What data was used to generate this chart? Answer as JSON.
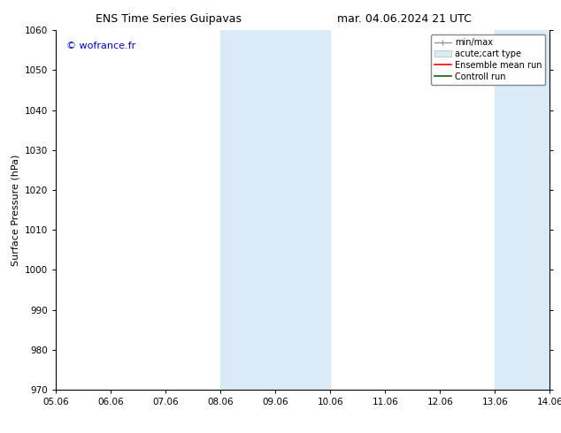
{
  "title_left": "ENS Time Series Guipavas",
  "title_right": "mar. 04.06.2024 21 UTC",
  "ylabel": "Surface Pressure (hPa)",
  "ylim": [
    970,
    1060
  ],
  "yticks": [
    970,
    980,
    990,
    1000,
    1010,
    1020,
    1030,
    1040,
    1050,
    1060
  ],
  "xtick_labels": [
    "05.06",
    "06.06",
    "07.06",
    "08.06",
    "09.06",
    "10.06",
    "11.06",
    "12.06",
    "13.06",
    "14.06"
  ],
  "watermark": "© wofrance.fr",
  "watermark_color": "#0000cc",
  "bg_color": "#ffffff",
  "plot_bg_color": "#ffffff",
  "shaded_regions": [
    {
      "xstart": 3,
      "xend": 5,
      "color": "#daeaf7"
    },
    {
      "xstart": 8,
      "xend": 9,
      "color": "#daeaf7"
    }
  ],
  "legend_entries": [
    {
      "label": "min/max",
      "color": "#aaaaaa",
      "lw": 1.0
    },
    {
      "label": "acute;cart type",
      "color": "#daeaf7",
      "lw": 6
    },
    {
      "label": "Ensemble mean run",
      "color": "#ff0000",
      "lw": 1.5
    },
    {
      "label": "Controll run",
      "color": "#006600",
      "lw": 1.5
    }
  ],
  "title_fontsize": 9,
  "tick_fontsize": 7.5,
  "ylabel_fontsize": 8,
  "watermark_fontsize": 8
}
